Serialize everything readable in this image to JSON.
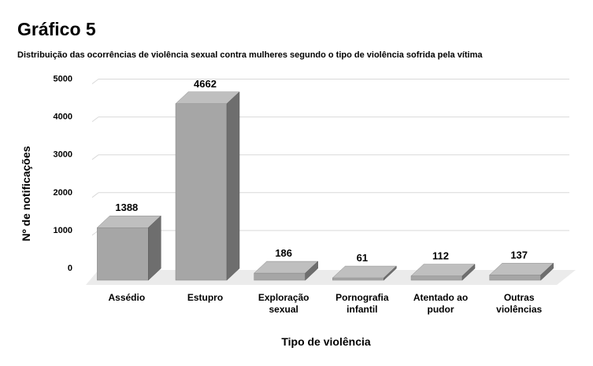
{
  "figure": {
    "title": "Gráfico 5",
    "subtitle": "Distribuição das ocorrências de violência sexual contra mulheres segundo o tipo de violência sofrida pela vítima"
  },
  "chart_data": {
    "type": "bar",
    "title": "Gráfico 5",
    "subtitle": "Distribuição das ocorrências de violência sexual contra mulheres segundo o tipo de violência sofrida pela vítima",
    "xlabel": "Tipo de violência",
    "ylabel": "Nº de notificações",
    "categories": [
      [
        "Assédio"
      ],
      [
        "Estupro"
      ],
      [
        "Exploração",
        "sexual"
      ],
      [
        "Pornografia",
        "infantil"
      ],
      [
        "Atentado ao",
        "pudor"
      ],
      [
        "Outras",
        "violências"
      ]
    ],
    "values": [
      1388,
      4662,
      186,
      61,
      112,
      137
    ],
    "yticks": [
      0,
      1000,
      2000,
      3000,
      4000,
      5000
    ],
    "ylim": [
      0,
      5000
    ],
    "grid": true,
    "legend": "none",
    "colors": {
      "bar_front": "#a6a6a6",
      "bar_top": "#bfbfbf",
      "bar_side": "#6e6e6e",
      "grid": "#d9d9d9",
      "floor": "#ebebeb"
    }
  }
}
